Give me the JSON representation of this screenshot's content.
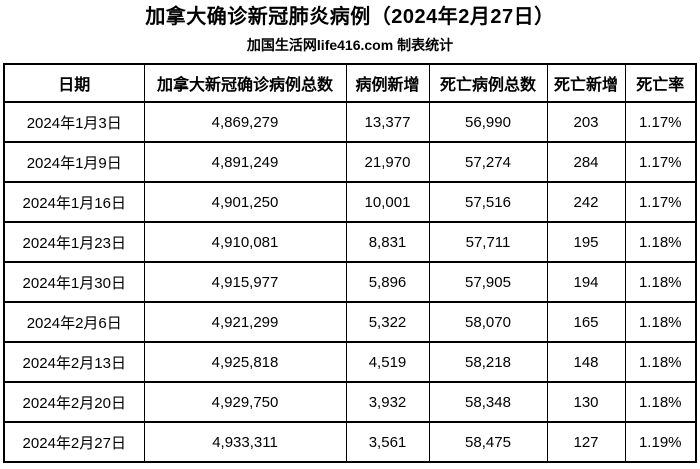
{
  "header": {
    "title": "加拿大确诊新冠肺炎病例（2024年2月27日）",
    "subtitle": "加国生活网life416.com 制表统计"
  },
  "chart_data": {
    "type": "table",
    "title": "加拿大确诊新冠肺炎病例（2024年2月27日）",
    "source_caption": "加国生活网life416.com 制表统计",
    "columns": [
      "日期",
      "加拿大新冠确诊病例总数",
      "病例新增",
      "死亡病例总数",
      "死亡新增",
      "死亡率"
    ],
    "rows": [
      [
        "2024年1月3日",
        "4,869,279",
        "13,377",
        "56,990",
        "203",
        "1.17%"
      ],
      [
        "2024年1月9日",
        "4,891,249",
        "21,970",
        "57,274",
        "284",
        "1.17%"
      ],
      [
        "2024年1月16日",
        "4,901,250",
        "10,001",
        "57,516",
        "242",
        "1.17%"
      ],
      [
        "2024年1月23日",
        "4,910,081",
        "8,831",
        "57,711",
        "195",
        "1.18%"
      ],
      [
        "2024年1月30日",
        "4,915,977",
        "5,896",
        "57,905",
        "194",
        "1.18%"
      ],
      [
        "2024年2月6日",
        "4,921,299",
        "5,322",
        "58,070",
        "165",
        "1.18%"
      ],
      [
        "2024年2月13日",
        "4,925,818",
        "4,519",
        "58,218",
        "148",
        "1.18%"
      ],
      [
        "2024年2月20日",
        "4,929,750",
        "3,932",
        "58,348",
        "130",
        "1.18%"
      ],
      [
        "2024年2月27日",
        "4,933,311",
        "3,561",
        "58,475",
        "127",
        "1.19%"
      ]
    ]
  },
  "colors": {
    "text": "#000000",
    "border": "#000000",
    "background": "#ffffff"
  }
}
